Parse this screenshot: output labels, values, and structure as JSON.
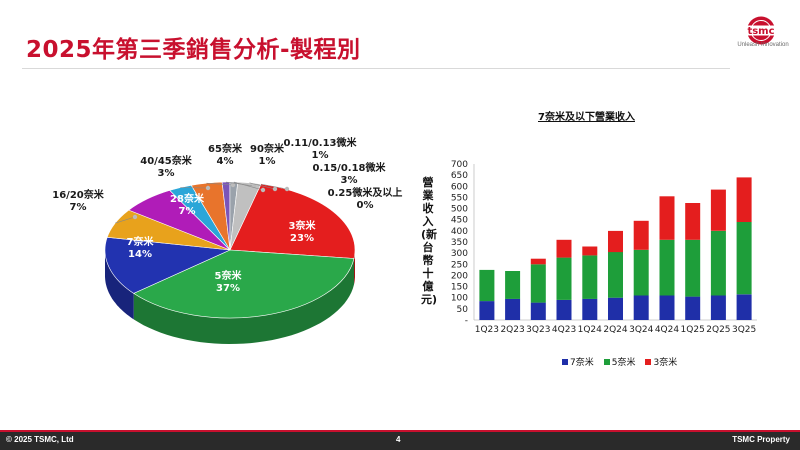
{
  "header": {
    "title": "2025年第三季銷售分析-製程別",
    "logo_text": "tsmc",
    "logo_tagline": "Unleash Innovation"
  },
  "footer": {
    "copyright": "© 2025 TSMC, Ltd",
    "page_number": "4",
    "property": "TSMC Property"
  },
  "colors": {
    "accent": "#c8102e",
    "n3": "#e41e1e",
    "n5": "#1e9e3a",
    "n7": "#1f2fa8"
  },
  "chart_data": [
    {
      "type": "pie",
      "title": "",
      "slices": [
        {
          "label": "3奈米",
          "value": 23,
          "value_label": "23%",
          "color": "#e41e1e"
        },
        {
          "label": "5奈米",
          "value": 37,
          "value_label": "37%",
          "color": "#2aa84a"
        },
        {
          "label": "7奈米",
          "value": 14,
          "value_label": "14%",
          "color": "#2233b0"
        },
        {
          "label": "16/20奈米",
          "value": 7,
          "value_label": "7%",
          "color": "#e8a21c"
        },
        {
          "label": "28奈米",
          "value": 7,
          "value_label": "7%",
          "color": "#b01cb8"
        },
        {
          "label": "40/45奈米",
          "value": 3,
          "value_label": "3%",
          "color": "#2aa6d8"
        },
        {
          "label": "65奈米",
          "value": 4,
          "value_label": "4%",
          "color": "#e8742c"
        },
        {
          "label": "90奈米",
          "value": 1,
          "value_label": "1%",
          "color": "#7a55b8"
        },
        {
          "label": "0.11/0.13微米",
          "value": 1,
          "value_label": "1%",
          "color": "#9aa2ab"
        },
        {
          "label": "0.15/0.18微米",
          "value": 3,
          "value_label": "3%",
          "color": "#c0c0c0"
        },
        {
          "label": "0.25微米及以上",
          "value": 0,
          "value_label": "0%",
          "color": "#7a7a7a"
        }
      ]
    },
    {
      "type": "bar",
      "stacked": true,
      "title": "7奈米及以下營業收入",
      "ylabel": "營業收入(新台幣十億元)",
      "ylim": [
        0,
        700
      ],
      "yticks": [
        "-",
        "50",
        "100",
        "150",
        "200",
        "250",
        "300",
        "350",
        "400",
        "450",
        "500",
        "550",
        "600",
        "650",
        "700"
      ],
      "categories": [
        "1Q23",
        "2Q23",
        "3Q23",
        "4Q23",
        "1Q24",
        "2Q24",
        "3Q24",
        "4Q24",
        "1Q25",
        "2Q25",
        "3Q25"
      ],
      "series": [
        {
          "name": "7奈米",
          "color": "#1f2fa8",
          "values": [
            85,
            95,
            78,
            90,
            95,
            100,
            110,
            110,
            105,
            110,
            115
          ]
        },
        {
          "name": "5奈米",
          "color": "#1e9e3a",
          "values": [
            140,
            125,
            172,
            190,
            195,
            205,
            205,
            250,
            255,
            290,
            325
          ]
        },
        {
          "name": "3奈米",
          "color": "#e41e1e",
          "values": [
            0,
            0,
            25,
            80,
            40,
            95,
            130,
            195,
            165,
            185,
            200
          ]
        }
      ]
    }
  ]
}
